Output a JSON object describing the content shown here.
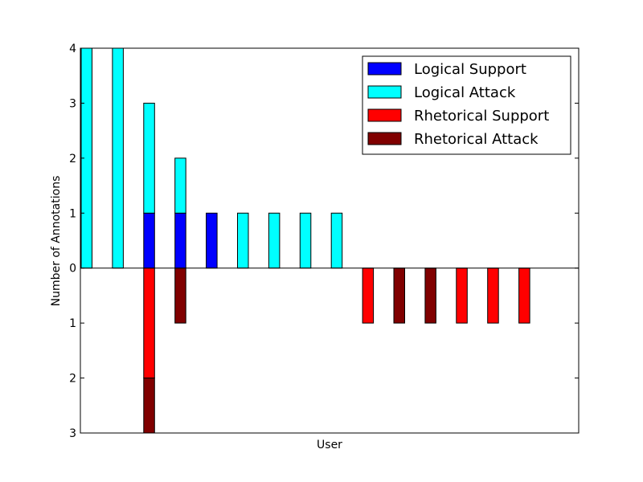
{
  "chart_data": {
    "type": "bar",
    "xlabel": "User",
    "ylabel": "Number of Annotations",
    "ylim": [
      -3,
      4
    ],
    "yticks": [
      {
        "value": 4,
        "label": "4"
      },
      {
        "value": 3,
        "label": "3"
      },
      {
        "value": 2,
        "label": "2"
      },
      {
        "value": 1,
        "label": "1"
      },
      {
        "value": 0,
        "label": "0"
      },
      {
        "value": -1,
        "label": "1"
      },
      {
        "value": -2,
        "label": "2"
      },
      {
        "value": -3,
        "label": "3"
      }
    ],
    "grid": false,
    "legend_position": "top-right",
    "users": 15,
    "series": [
      {
        "name": "Logical Support",
        "color": "#0000ff",
        "direction": "up",
        "values": [
          0,
          0,
          1,
          1,
          1,
          0,
          0,
          0,
          0,
          0,
          0,
          0,
          0,
          0,
          0
        ]
      },
      {
        "name": "Logical Attack",
        "color": "#00ffff",
        "direction": "up",
        "values": [
          4,
          4,
          2,
          1,
          0,
          1,
          1,
          1,
          1,
          0,
          0,
          0,
          0,
          0,
          0
        ]
      },
      {
        "name": "Rhetorical Support",
        "color": "#ff0000",
        "direction": "down",
        "values": [
          0,
          0,
          2,
          0,
          0,
          0,
          0,
          0,
          0,
          1,
          0,
          0,
          1,
          1,
          1
        ]
      },
      {
        "name": "Rhetorical Attack",
        "color": "#800000",
        "direction": "down",
        "values": [
          0,
          0,
          1,
          1,
          0,
          0,
          0,
          0,
          0,
          0,
          1,
          1,
          0,
          0,
          0
        ]
      }
    ]
  }
}
